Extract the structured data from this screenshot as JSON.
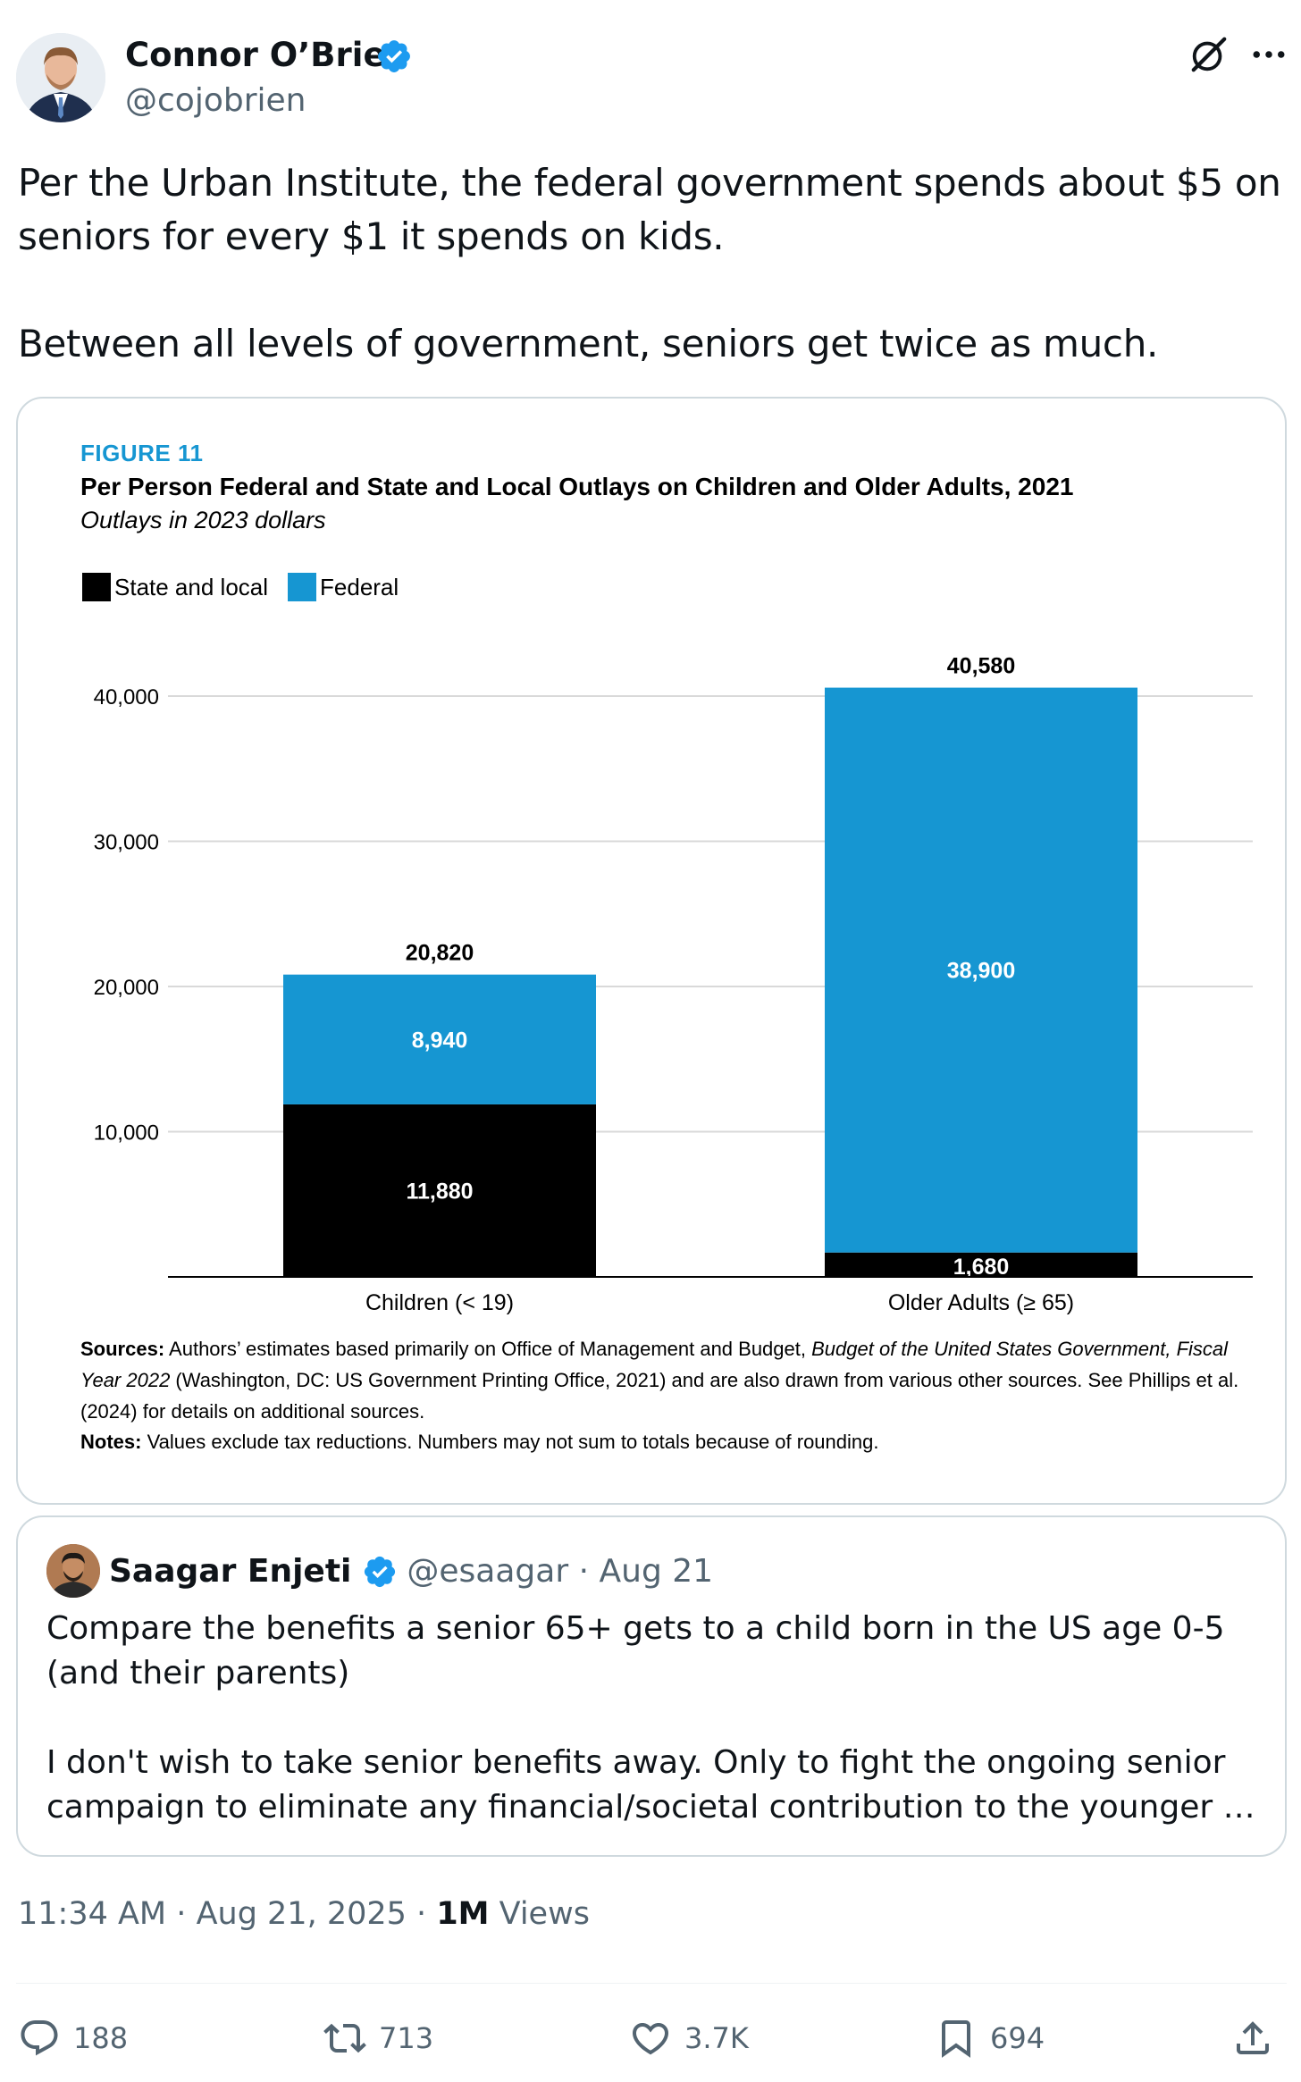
{
  "author": {
    "name": "Connor O’Brien",
    "handle": "@cojobrien",
    "verified": true
  },
  "post": {
    "text": "Per the Urban Institute, the federal government spends about $5 on seniors for every $1 it spends on kids.\n\nBetween all levels of government, seniors get twice as much."
  },
  "figure": {
    "label": "FIGURE 11",
    "title": "Per Person Federal and State and Local Outlays on Children and Older Adults, 2021",
    "subtitle": "Outlays in 2023 dollars",
    "sources_label": "Sources:",
    "sources_text_1": " Authors’ estimates based primarily on Office of Management and Budget, ",
    "sources_italic": "Budget of the United States Government, Fiscal Year 2022",
    "sources_text_2": " (Washington, DC: US Government Printing Office, 2021) and are also drawn from various other sources. See Phillips et al. (2024) for details on additional sources.",
    "notes_label": "Notes:",
    "notes_text": " Values exclude tax reductions. Numbers may not sum to totals because of rounding."
  },
  "chart_data": {
    "type": "bar",
    "stacked": true,
    "categories": [
      "Children (< 19)",
      "Older Adults (≥ 65)"
    ],
    "series": [
      {
        "name": "State and local",
        "values": [
          11880,
          1680
        ],
        "color": "#000000",
        "labels": [
          "11,880",
          "1,680"
        ]
      },
      {
        "name": "Federal",
        "values": [
          8940,
          38900
        ],
        "color": "#1696d2",
        "labels": [
          "8,940",
          "38,900"
        ]
      }
    ],
    "totals": [
      20820,
      40580
    ],
    "total_labels": [
      "20,820",
      "40,580"
    ],
    "ylim": [
      0,
      40000
    ],
    "yticks": [
      10000,
      20000,
      30000,
      40000
    ],
    "ytick_labels": [
      "10,000",
      "20,000",
      "30,000",
      "40,000"
    ],
    "grid": true,
    "legend_position": "top-left"
  },
  "quote": {
    "name": "Saagar Enjeti",
    "handle": "@esaagar",
    "date": "Aug 21",
    "separator": "·",
    "verified": true,
    "text": "Compare the benefits a senior 65+ gets to a child born in the US age 0-5 (and their parents)\n\nI don't wish to take senior benefits away. Only to fight the ongoing senior campaign to eliminate any financial/societal contribution to the younger …"
  },
  "meta": {
    "time": "11:34 AM",
    "date": "Aug 21, 2025",
    "views_count": "1M",
    "views_label": "Views",
    "separator": "·"
  },
  "actions": {
    "replies": "188",
    "reposts": "713",
    "likes": "3.7K",
    "bookmarks": "694"
  },
  "colors": {
    "verified": "#1d9bf0",
    "secondary_text": "#536471",
    "federal": "#1696d2",
    "state_local": "#000000"
  },
  "icons": [
    "grok-icon",
    "more-icon",
    "verified-icon",
    "reply-icon",
    "repost-icon",
    "like-icon",
    "bookmark-icon",
    "share-icon"
  ]
}
